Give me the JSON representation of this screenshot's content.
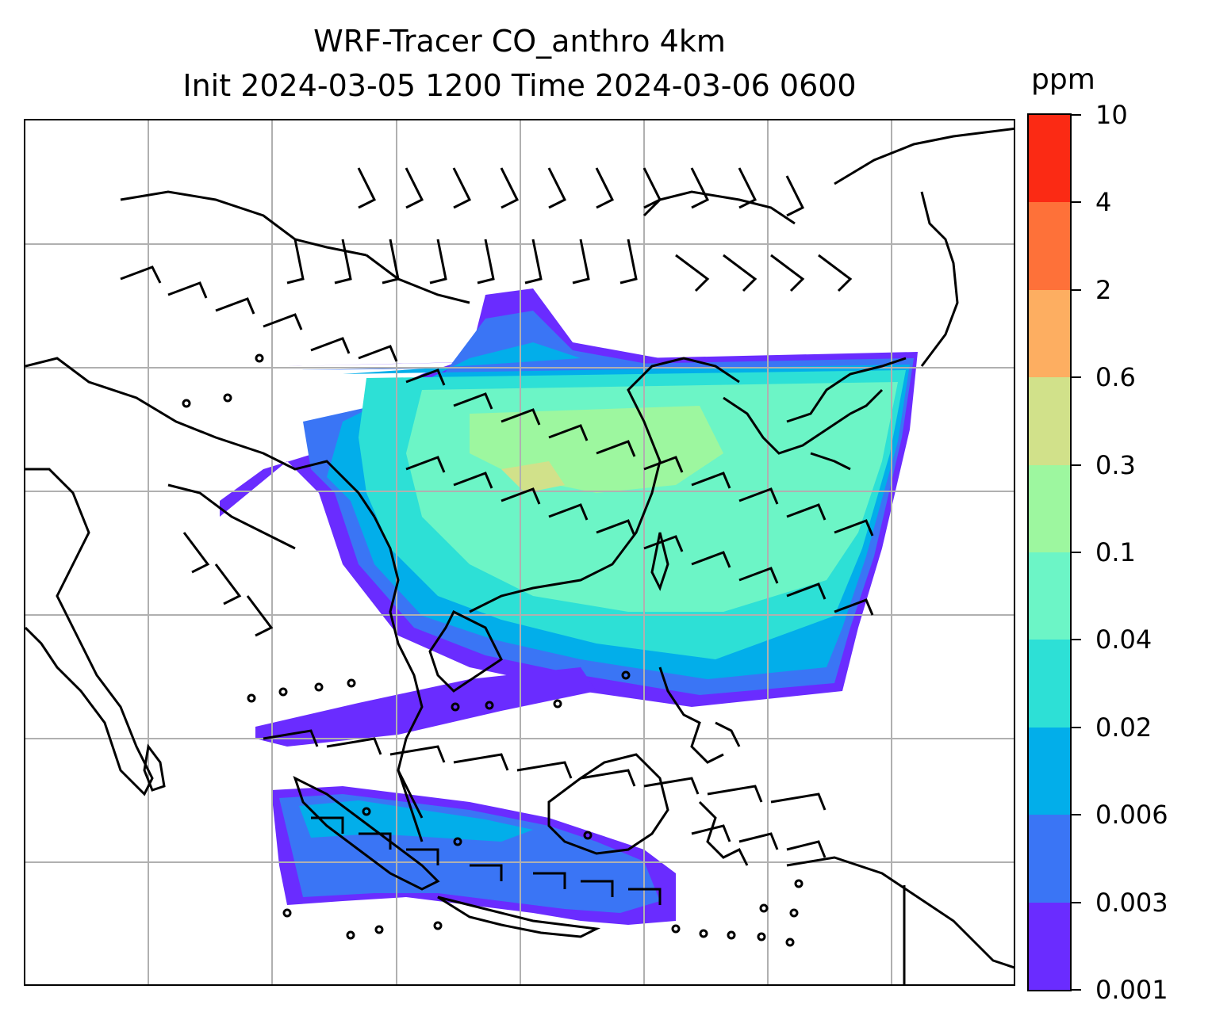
{
  "title": {
    "line1": "WRF-Tracer CO_anthro 4km",
    "line2": "Init 2024-03-05 1200 Time 2024-03-06 0600"
  },
  "colorbar": {
    "unit": "ppm",
    "levels": [
      "0.001",
      "0.003",
      "0.006",
      "0.02",
      "0.04",
      "0.1",
      "0.3",
      "0.6",
      "2",
      "4",
      "10"
    ],
    "colors": [
      "#6a2cff",
      "#3a75f5",
      "#02aeea",
      "#2de0d6",
      "#6cf5c6",
      "#9df79f",
      "#d1e18a",
      "#fdae61",
      "#fe7139",
      "#fb2a14"
    ]
  },
  "map": {
    "overlay": "wind-barbs",
    "gridlines": true,
    "coastline_color": "#000000",
    "grid_color": "#b0b0b0"
  }
}
